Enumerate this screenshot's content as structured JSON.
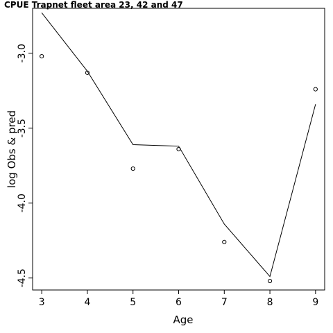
{
  "chart_data": {
    "type": "line",
    "title": "CPUE Trapnet fleet area 23, 42 and 47",
    "xlabel": "Age",
    "ylabel": "log Obs & pred",
    "xlim": [
      2.8,
      9.2
    ],
    "ylim": [
      -4.58,
      -2.7
    ],
    "x_ticks": [
      3,
      4,
      5,
      6,
      7,
      8,
      9
    ],
    "y_ticks": [
      -3.0,
      -3.5,
      -4.0,
      -4.5
    ],
    "y_tick_labels": [
      "-3.0",
      "-3.5",
      "-4.0",
      "-4.5"
    ],
    "series": [
      {
        "style": "points-open-circle",
        "x": [
          3,
          4,
          5,
          6,
          7,
          8,
          9
        ],
        "y": [
          -3.02,
          -3.13,
          -3.77,
          -3.64,
          -4.26,
          -4.52,
          -3.24
        ]
      },
      {
        "style": "line",
        "x": [
          3,
          4,
          5,
          6,
          7,
          8,
          9
        ],
        "y": [
          -2.73,
          -3.12,
          -3.61,
          -3.62,
          -4.14,
          -4.49,
          -3.34
        ]
      }
    ],
    "grid": false,
    "legend": "none",
    "colors": {
      "points": "#000000",
      "line": "#000000",
      "axes": "#000000"
    }
  }
}
